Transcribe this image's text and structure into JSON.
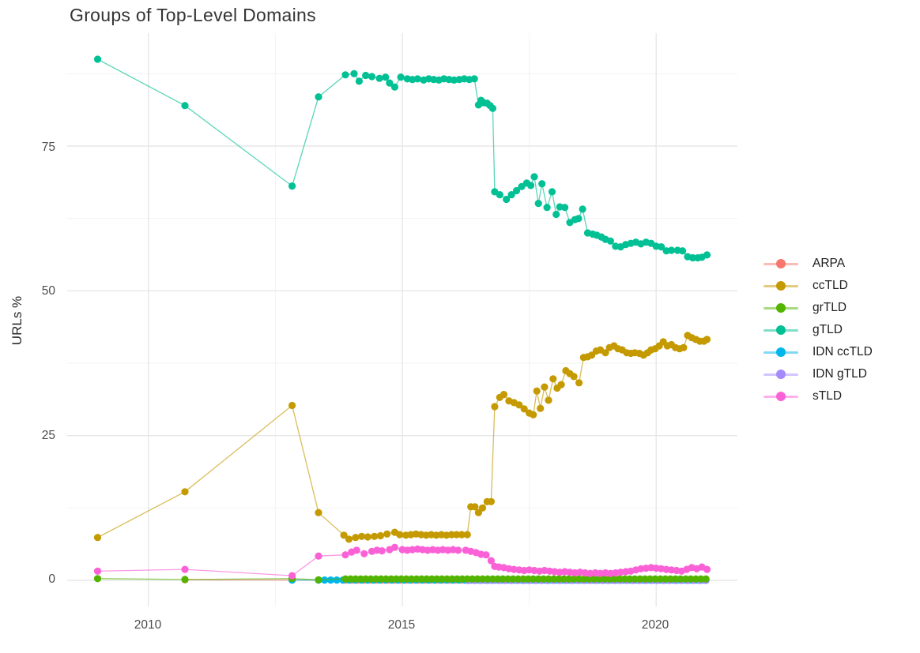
{
  "title": "Groups of Top-Level Domains",
  "chart_data": {
    "type": "line",
    "title": "Groups of Top-Level Domains",
    "xlabel": "",
    "ylabel": "URLs %",
    "xlim": [
      2008.4,
      2021.6
    ],
    "ylim": [
      -4.5,
      94.5
    ],
    "grid": "white background, light gray major and minor gridlines, no axis lines (ggplot minimal theme)",
    "legend_position": "right",
    "x_major_ticks": [
      {
        "value": 2010,
        "label": "2010"
      },
      {
        "value": 2015,
        "label": "2015"
      },
      {
        "value": 2020,
        "label": "2020"
      }
    ],
    "x_minor": [
      2012.5,
      2017.5
    ],
    "y_major_ticks": [
      {
        "value": 0,
        "label": "0"
      },
      {
        "value": 25,
        "label": "25"
      },
      {
        "value": 50,
        "label": "50"
      },
      {
        "value": 75,
        "label": "75"
      }
    ],
    "y_minor": [
      12.5,
      37.5,
      62.5,
      87.5
    ],
    "series": [
      {
        "name": "ARPA",
        "color": "#F8766D",
        "points": [
          [
            2010.72,
            0.1
          ],
          [
            2012.83,
            0.05
          ],
          [
            2013.35,
            0.05
          ]
        ],
        "runs": [
          {
            "from": 2013.88,
            "to": 2021.0,
            "step": 0.12,
            "value": 0.05
          }
        ]
      },
      {
        "name": "ccTLD",
        "color": "#C49A00",
        "points": [
          [
            2009,
            7.4
          ],
          [
            2010.72,
            15.3
          ],
          [
            2012.83,
            30.2
          ],
          [
            2013.35,
            11.7
          ],
          [
            2013.85,
            7.8
          ],
          [
            2013.95,
            7.1
          ],
          [
            2014.08,
            7.4
          ],
          [
            2014.2,
            7.6
          ],
          [
            2014.32,
            7.5
          ],
          [
            2014.45,
            7.6
          ],
          [
            2014.57,
            7.7
          ],
          [
            2014.7,
            8.0
          ],
          [
            2014.85,
            8.3
          ],
          [
            2014.95,
            7.9
          ],
          [
            2015.07,
            7.8
          ],
          [
            2015.17,
            7.9
          ],
          [
            2015.27,
            8.0
          ],
          [
            2015.37,
            7.9
          ],
          [
            2015.47,
            7.8
          ],
          [
            2015.57,
            7.9
          ],
          [
            2015.67,
            7.8
          ],
          [
            2015.77,
            7.9
          ],
          [
            2015.87,
            7.8
          ],
          [
            2015.97,
            7.9
          ],
          [
            2016.07,
            7.9
          ],
          [
            2016.17,
            7.9
          ],
          [
            2016.28,
            7.9
          ],
          [
            2016.35,
            12.7
          ],
          [
            2016.43,
            12.7
          ],
          [
            2016.5,
            11.7
          ],
          [
            2016.58,
            12.5
          ],
          [
            2016.67,
            13.6
          ],
          [
            2016.75,
            13.6
          ],
          [
            2016.82,
            30.0
          ],
          [
            2016.92,
            31.6
          ],
          [
            2017.0,
            32.1
          ],
          [
            2017.1,
            31.0
          ],
          [
            2017.2,
            30.7
          ],
          [
            2017.3,
            30.3
          ],
          [
            2017.4,
            29.6
          ],
          [
            2017.5,
            28.9
          ],
          [
            2017.58,
            28.6
          ],
          [
            2017.65,
            32.7
          ],
          [
            2017.72,
            29.7
          ],
          [
            2017.8,
            33.4
          ],
          [
            2017.88,
            31.1
          ],
          [
            2017.97,
            34.8
          ],
          [
            2018.05,
            33.2
          ],
          [
            2018.13,
            33.8
          ],
          [
            2018.22,
            36.2
          ],
          [
            2018.3,
            35.7
          ],
          [
            2018.38,
            35.2
          ],
          [
            2018.48,
            34.1
          ],
          [
            2018.57,
            38.5
          ],
          [
            2018.65,
            38.6
          ],
          [
            2018.73,
            38.9
          ],
          [
            2018.82,
            39.6
          ],
          [
            2018.9,
            39.8
          ],
          [
            2019.0,
            39.3
          ],
          [
            2019.08,
            40.2
          ],
          [
            2019.17,
            40.5
          ],
          [
            2019.25,
            40.0
          ],
          [
            2019.33,
            39.8
          ],
          [
            2019.42,
            39.3
          ],
          [
            2019.5,
            39.2
          ],
          [
            2019.58,
            39.3
          ],
          [
            2019.67,
            39.2
          ],
          [
            2019.75,
            38.9
          ],
          [
            2019.83,
            39.3
          ],
          [
            2019.9,
            39.8
          ],
          [
            2019.98,
            40.0
          ],
          [
            2020.06,
            40.5
          ],
          [
            2020.14,
            41.2
          ],
          [
            2020.22,
            40.5
          ],
          [
            2020.3,
            40.7
          ],
          [
            2020.38,
            40.2
          ],
          [
            2020.46,
            40.0
          ],
          [
            2020.54,
            40.2
          ],
          [
            2020.62,
            42.3
          ],
          [
            2020.7,
            41.9
          ],
          [
            2020.78,
            41.6
          ],
          [
            2020.86,
            41.3
          ],
          [
            2020.94,
            41.3
          ],
          [
            2021.0,
            41.6
          ]
        ]
      },
      {
        "name": "grTLD",
        "color": "#53B400",
        "points": [
          [
            2009,
            0.3
          ],
          [
            2010.72,
            0.15
          ],
          [
            2012.83,
            0.3
          ],
          [
            2013.35,
            0.1
          ]
        ],
        "runs": [
          {
            "from": 2013.88,
            "to": 2021.0,
            "step": 0.1,
            "value": 0.25
          }
        ]
      },
      {
        "name": "gTLD",
        "color": "#00C094",
        "points": [
          [
            2009,
            90.0
          ],
          [
            2010.72,
            82.0
          ],
          [
            2012.83,
            68.1
          ],
          [
            2013.35,
            83.5
          ],
          [
            2013.88,
            87.3
          ],
          [
            2014.05,
            87.5
          ],
          [
            2014.15,
            86.2
          ],
          [
            2014.28,
            87.2
          ],
          [
            2014.4,
            87.0
          ],
          [
            2014.55,
            86.7
          ],
          [
            2014.67,
            86.9
          ],
          [
            2014.75,
            85.9
          ],
          [
            2014.85,
            85.2
          ],
          [
            2014.97,
            86.9
          ],
          [
            2015.1,
            86.6
          ],
          [
            2015.2,
            86.5
          ],
          [
            2015.3,
            86.6
          ],
          [
            2015.42,
            86.4
          ],
          [
            2015.52,
            86.6
          ],
          [
            2015.62,
            86.5
          ],
          [
            2015.72,
            86.4
          ],
          [
            2015.82,
            86.6
          ],
          [
            2015.92,
            86.5
          ],
          [
            2016.02,
            86.4
          ],
          [
            2016.12,
            86.5
          ],
          [
            2016.22,
            86.6
          ],
          [
            2016.32,
            86.5
          ],
          [
            2016.42,
            86.6
          ],
          [
            2016.5,
            82.1
          ],
          [
            2016.55,
            82.9
          ],
          [
            2016.6,
            82.5
          ],
          [
            2016.67,
            82.4
          ],
          [
            2016.73,
            82.0
          ],
          [
            2016.78,
            81.5
          ],
          [
            2016.82,
            67.1
          ],
          [
            2016.92,
            66.6
          ],
          [
            2017.05,
            65.8
          ],
          [
            2017.15,
            66.6
          ],
          [
            2017.25,
            67.3
          ],
          [
            2017.35,
            68.0
          ],
          [
            2017.45,
            68.6
          ],
          [
            2017.53,
            68.2
          ],
          [
            2017.6,
            69.7
          ],
          [
            2017.68,
            65.1
          ],
          [
            2017.75,
            68.5
          ],
          [
            2017.85,
            64.4
          ],
          [
            2017.95,
            67.1
          ],
          [
            2018.03,
            63.2
          ],
          [
            2018.1,
            64.5
          ],
          [
            2018.2,
            64.4
          ],
          [
            2018.3,
            61.8
          ],
          [
            2018.4,
            62.3
          ],
          [
            2018.47,
            62.5
          ],
          [
            2018.55,
            64.1
          ],
          [
            2018.65,
            60.0
          ],
          [
            2018.75,
            59.8
          ],
          [
            2018.83,
            59.6
          ],
          [
            2018.92,
            59.3
          ],
          [
            2019.0,
            58.9
          ],
          [
            2019.1,
            58.6
          ],
          [
            2019.2,
            57.7
          ],
          [
            2019.3,
            57.6
          ],
          [
            2019.4,
            58.0
          ],
          [
            2019.5,
            58.2
          ],
          [
            2019.6,
            58.4
          ],
          [
            2019.7,
            58.1
          ],
          [
            2019.8,
            58.4
          ],
          [
            2019.9,
            58.2
          ],
          [
            2020.0,
            57.7
          ],
          [
            2020.1,
            57.6
          ],
          [
            2020.2,
            56.9
          ],
          [
            2020.3,
            57.0
          ],
          [
            2020.42,
            57.0
          ],
          [
            2020.52,
            56.9
          ],
          [
            2020.62,
            55.9
          ],
          [
            2020.72,
            55.7
          ],
          [
            2020.82,
            55.7
          ],
          [
            2020.9,
            55.8
          ],
          [
            2021.0,
            56.2
          ]
        ]
      },
      {
        "name": "IDN ccTLD",
        "color": "#00B6EB",
        "points": [
          [
            2012.83,
            0.05
          ]
        ],
        "runs": [
          {
            "from": 2013.35,
            "to": 2021.0,
            "step": 0.12,
            "value": 0.05
          }
        ]
      },
      {
        "name": "IDN gTLD",
        "color": "#A58AFF",
        "points": [],
        "runs": [
          {
            "from": 2016.3,
            "to": 2021.0,
            "step": 0.12,
            "value": 0.0
          }
        ]
      },
      {
        "name": "sTLD",
        "color": "#FB61D7",
        "points": [
          [
            2009,
            1.6
          ],
          [
            2010.72,
            1.9
          ],
          [
            2012.83,
            0.8
          ],
          [
            2013.35,
            4.2
          ],
          [
            2013.88,
            4.4
          ],
          [
            2014.0,
            4.9
          ],
          [
            2014.1,
            5.2
          ],
          [
            2014.25,
            4.6
          ],
          [
            2014.4,
            5.0
          ],
          [
            2014.5,
            5.2
          ],
          [
            2014.6,
            5.1
          ],
          [
            2014.75,
            5.3
          ],
          [
            2014.85,
            5.7
          ],
          [
            2015.0,
            5.3
          ],
          [
            2015.1,
            5.2
          ],
          [
            2015.2,
            5.3
          ],
          [
            2015.3,
            5.4
          ],
          [
            2015.4,
            5.3
          ],
          [
            2015.5,
            5.2
          ],
          [
            2015.6,
            5.3
          ],
          [
            2015.7,
            5.2
          ],
          [
            2015.8,
            5.3
          ],
          [
            2015.9,
            5.2
          ],
          [
            2016.0,
            5.3
          ],
          [
            2016.1,
            5.2
          ],
          [
            2016.25,
            5.2
          ],
          [
            2016.35,
            5.0
          ],
          [
            2016.45,
            4.8
          ],
          [
            2016.55,
            4.5
          ],
          [
            2016.65,
            4.4
          ],
          [
            2016.75,
            3.4
          ],
          [
            2016.82,
            2.4
          ],
          [
            2016.9,
            2.3
          ],
          [
            2017.0,
            2.2
          ],
          [
            2017.1,
            2.0
          ],
          [
            2017.2,
            1.9
          ],
          [
            2017.3,
            1.8
          ],
          [
            2017.4,
            1.7
          ],
          [
            2017.5,
            1.8
          ],
          [
            2017.6,
            1.7
          ],
          [
            2017.7,
            1.6
          ],
          [
            2017.8,
            1.7
          ],
          [
            2017.9,
            1.6
          ],
          [
            2018.0,
            1.5
          ],
          [
            2018.1,
            1.4
          ],
          [
            2018.2,
            1.5
          ],
          [
            2018.3,
            1.4
          ],
          [
            2018.4,
            1.3
          ],
          [
            2018.5,
            1.4
          ],
          [
            2018.6,
            1.3
          ],
          [
            2018.7,
            1.2
          ],
          [
            2018.8,
            1.3
          ],
          [
            2018.9,
            1.2
          ],
          [
            2019.0,
            1.3
          ],
          [
            2019.1,
            1.2
          ],
          [
            2019.2,
            1.3
          ],
          [
            2019.3,
            1.4
          ],
          [
            2019.4,
            1.5
          ],
          [
            2019.5,
            1.6
          ],
          [
            2019.6,
            1.8
          ],
          [
            2019.7,
            2.0
          ],
          [
            2019.8,
            2.1
          ],
          [
            2019.9,
            2.2
          ],
          [
            2020.0,
            2.1
          ],
          [
            2020.1,
            2.0
          ],
          [
            2020.2,
            1.9
          ],
          [
            2020.3,
            1.8
          ],
          [
            2020.4,
            1.7
          ],
          [
            2020.5,
            1.6
          ],
          [
            2020.6,
            1.9
          ],
          [
            2020.7,
            2.2
          ],
          [
            2020.8,
            2.0
          ],
          [
            2020.9,
            2.3
          ],
          [
            2021.0,
            1.9
          ]
        ]
      }
    ]
  }
}
